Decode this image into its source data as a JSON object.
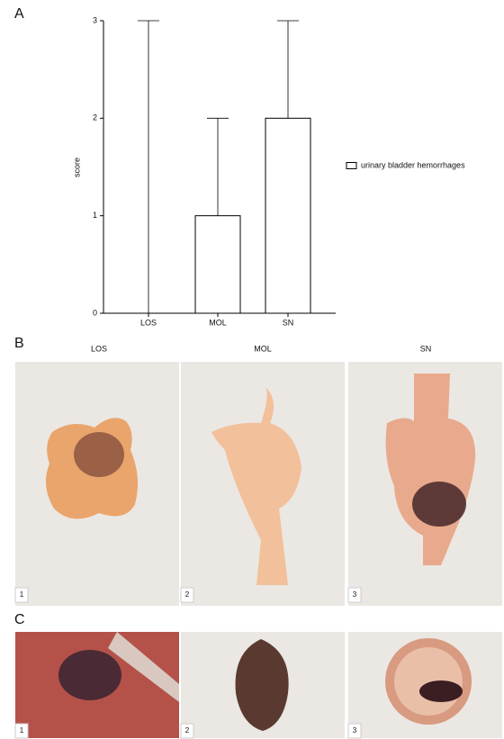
{
  "chart_data": {
    "type": "bar",
    "panel_label": "A",
    "ylabel": "score",
    "categories": [
      "LOS",
      "MOL",
      "SN"
    ],
    "series": [
      {
        "name": "urinary bladder hemorrhages",
        "color": "#ffffff",
        "values": [
          0,
          1,
          2
        ],
        "errors": [
          3,
          1,
          1
        ]
      }
    ],
    "ylim": [
      0,
      3
    ],
    "yticks": [
      0,
      1,
      2,
      3
    ],
    "grid": false,
    "legend": "right"
  },
  "figure_b": {
    "panel_label": "B",
    "column_labels": [
      "LOS",
      "MOL",
      "SN"
    ],
    "photo_numbers": [
      "1",
      "2",
      "3"
    ]
  },
  "figure_c": {
    "panel_label": "C",
    "photo_numbers": [
      "1",
      "2",
      "3"
    ]
  }
}
